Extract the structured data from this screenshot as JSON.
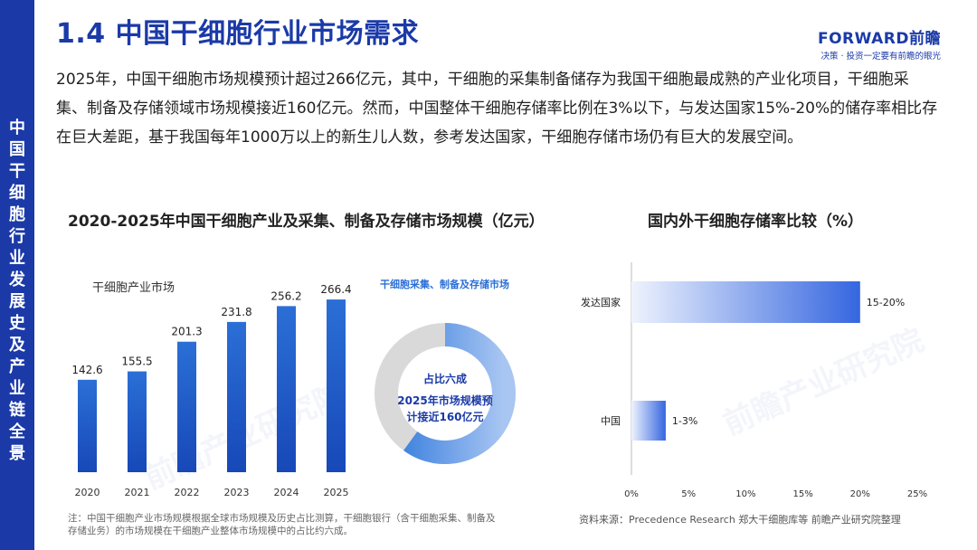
{
  "sidebar": {
    "vertical_text": "中国干细胞行业发展史及产业链全景"
  },
  "header": {
    "title": "1.4 中国干细胞行业市场需求",
    "brand_name": "FORWARD前瞻",
    "brand_slogan": "决策 · 投资一定要有前瞻的眼光"
  },
  "intro": "2025年，中国干细胞市场规模预计超过266亿元，其中，干细胞的采集制备储存为我国干细胞最成熟的产业化项目，干细胞采集、制备及存储领域市场规模接近160亿元。然而，中国整体干细胞存储率比例在3%以下，与发达国家15%-20%的储存率相比存在巨大差距，基于我国每年1000万以上的新生儿人数，参考发达国家，干细胞存储市场仍有巨大的发展空间。",
  "watermark": "前瞻产业研究院",
  "footer": {
    "note": "注：中国干细胞产业市场规模根据全球市场规模及历史占比测算，干细胞银行（含干细胞采集、制备及存储业务）的市场规模在干细胞产业整体市场规模中的占比约六成。",
    "source": "资料来源：Precedence Research 郑大干细胞库等  前瞻产业研究院整理"
  },
  "colors": {
    "brand_blue": "#1b3aa8",
    "bar_top": "#2b6fd6",
    "bar_bottom": "#1748b8",
    "donut_blue": "#2f78dc",
    "donut_grey": "#d9d9d9",
    "hbar_blue": "#3566e0"
  },
  "chart_data": [
    {
      "type": "bar",
      "title": "2020-2025年中国干细胞产业及采集、制备及存储市场规模（亿元）",
      "series": [
        {
          "name": "干细胞产业市场",
          "values": [
            142.6,
            155.5,
            201.3,
            231.8,
            256.2,
            266.4
          ]
        }
      ],
      "categories": [
        "2020",
        "2021",
        "2022",
        "2023",
        "2024",
        "2025"
      ],
      "ylim": [
        0,
        300
      ],
      "grid": false,
      "data_labels": true
    },
    {
      "type": "pie",
      "title": "干细胞采集、制备及存储市场",
      "share": 0.6,
      "center_line1": "占比六成",
      "center_line2": "2025年市场规模预",
      "center_line3": "计接近160亿元"
    },
    {
      "type": "bar",
      "orientation": "horizontal",
      "title": "国内外干细胞存储率比较（%）",
      "categories": [
        "发达国家",
        "中国"
      ],
      "ranges": [
        [
          15,
          20
        ],
        [
          1,
          3
        ]
      ],
      "data_labels": [
        "15-20%",
        "1-3%"
      ],
      "xlim": [
        0,
        25
      ],
      "xticks": [
        "0%",
        "5%",
        "10%",
        "15%",
        "20%",
        "25%"
      ],
      "grid": false
    }
  ]
}
